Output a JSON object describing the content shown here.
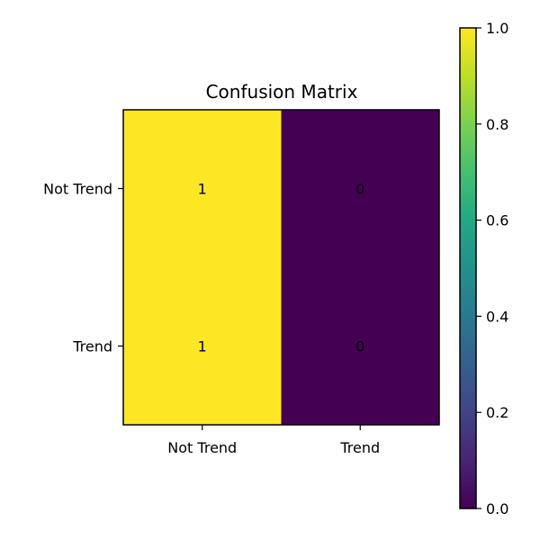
{
  "chart_data": {
    "type": "heatmap",
    "title": "Confusion Matrix",
    "xlabel": "",
    "ylabel": "",
    "x_categories": [
      "Not Trend",
      "Trend"
    ],
    "y_categories": [
      "Not Trend",
      "Trend"
    ],
    "values": [
      [
        1,
        0
      ],
      [
        1,
        0
      ]
    ],
    "cell_labels": [
      [
        "1",
        "0"
      ],
      [
        "1",
        "0"
      ]
    ],
    "colormap": "viridis",
    "colorbar": {
      "range": [
        0.0,
        1.0
      ],
      "ticks": [
        "0.0",
        "0.2",
        "0.4",
        "0.6",
        "0.8",
        "1.0"
      ],
      "tick_values": [
        0.0,
        0.2,
        0.4,
        0.6,
        0.8,
        1.0
      ]
    },
    "colors": {
      "low": "#440154",
      "high": "#fde725"
    },
    "grid": false
  }
}
